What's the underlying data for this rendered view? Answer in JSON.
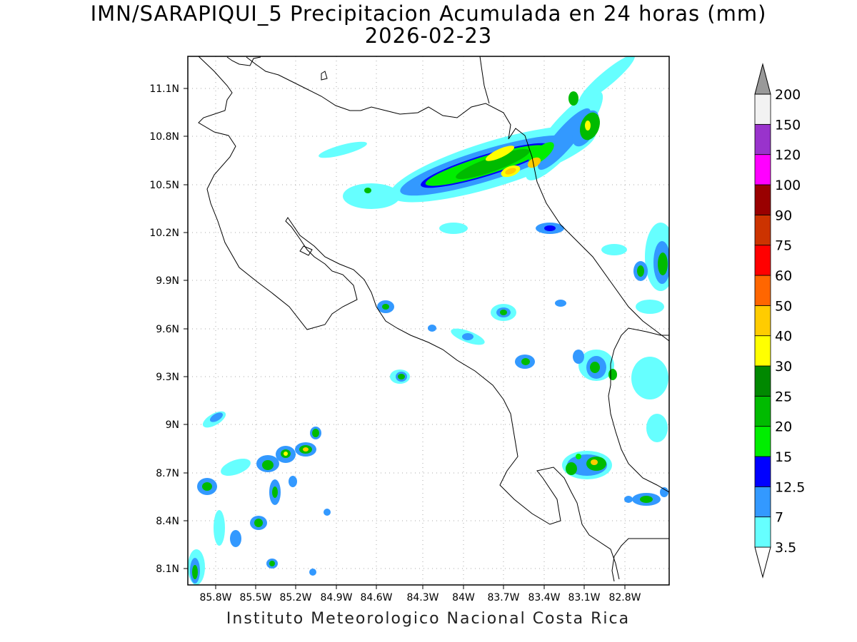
{
  "title_line1": "IMN/SARAPIQUI_5 Precipitacion Acumulada en 24 horas (mm)",
  "title_line2": "2026-02-23",
  "footer": "Instituto Meteorologico Nacional Costa Rica",
  "lon_labels": [
    "85.8W",
    "85.5W",
    "85.2W",
    "84.9W",
    "84.6W",
    "84.3W",
    "84W",
    "83.7W",
    "83.4W",
    "83.1W",
    "82.8W"
  ],
  "lat_labels": [
    "11.1N",
    "10.8N",
    "10.5N",
    "10.2N",
    "9.9N",
    "9.6N",
    "9.3N",
    "9N",
    "8.7N",
    "8.4N",
    "8.1N"
  ],
  "colorbar": {
    "levels": [
      "3.5",
      "7",
      "12.5",
      "15",
      "20",
      "25",
      "30",
      "40",
      "50",
      "60",
      "75",
      "90",
      "100",
      "120",
      "150",
      "200"
    ],
    "colors": [
      "#66ffff",
      "#3399ff",
      "#0000ff",
      "#00ee00",
      "#00bb00",
      "#008800",
      "#ffff00",
      "#ffcc00",
      "#ff6600",
      "#ff0000",
      "#cc3300",
      "#990000",
      "#ff00ff",
      "#9933cc",
      "#f2f2f2",
      "#999999"
    ],
    "under_color": "#ffffff"
  },
  "map_extent": {
    "lon_min": -85.96,
    "lon_max": -82.64,
    "lat_min": 8.01,
    "lat_max": 11.29
  }
}
